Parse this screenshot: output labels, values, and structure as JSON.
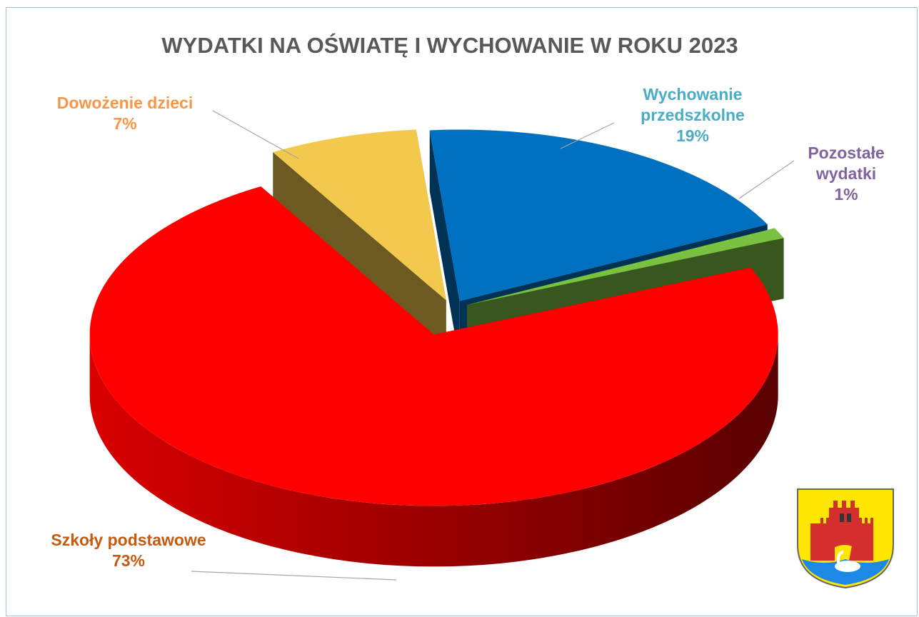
{
  "chart_data": {
    "type": "pie3d",
    "title": "WYDATKI NA OŚWIATĘ I WYCHOWANIE W ROKU 2023",
    "categories": [
      "Wychowanie przedszkolne",
      "Pozostałe wydatki",
      "Szkoły podstawowe",
      "Dowożenie dzieci"
    ],
    "values": [
      19,
      1,
      73,
      7
    ],
    "value_labels": [
      "19%",
      "1%",
      "73%",
      "7%"
    ],
    "colors": [
      "#0070c0",
      "#7ac142",
      "#ff0000",
      "#f2c94c"
    ],
    "label_colors": [
      "#4bacc6",
      "#8064a2",
      "#c55a11",
      "#f79646"
    ]
  }
}
